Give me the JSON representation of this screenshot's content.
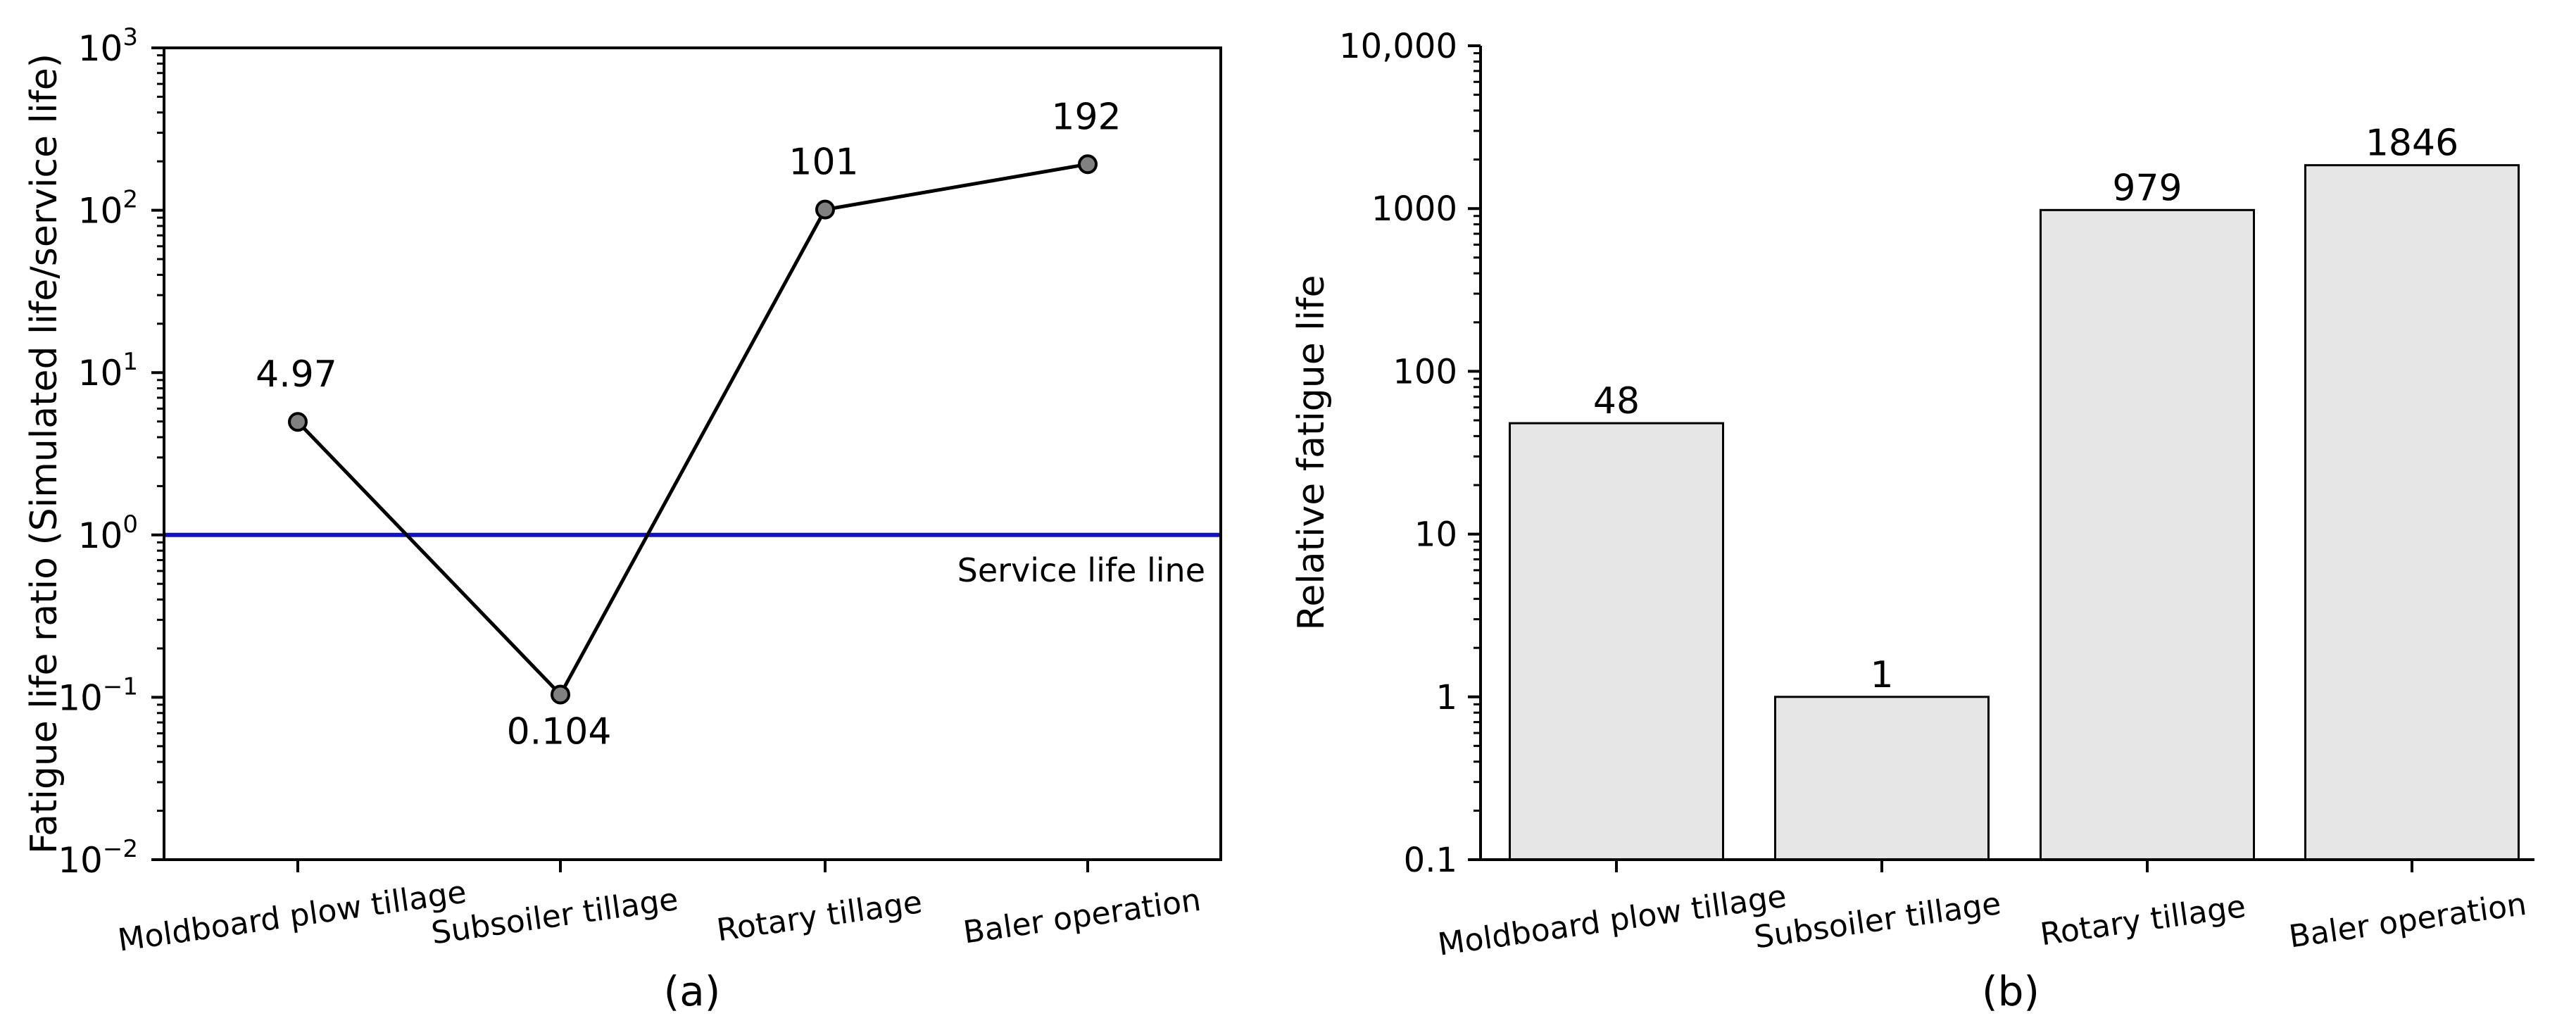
{
  "chart_data": [
    {
      "panel_label": "(a)",
      "type": "line",
      "scale": "log",
      "ylabel": "Fatigue life ratio (Simulated life/service life)",
      "xlabel": "",
      "categories": [
        "Moldboard plow tillage",
        "Subsoiler tillage",
        "Rotary tillage",
        "Baler operation"
      ],
      "series": [
        {
          "values": [
            4.97,
            0.104,
            101,
            192
          ],
          "color": "#000000",
          "marker_color": "#808080"
        }
      ],
      "data_labels": [
        "4.97",
        "0.104",
        "101",
        "192"
      ],
      "ylim": [
        0.01,
        1000
      ],
      "y_ticks": [
        {
          "value": 0.01,
          "base": "10",
          "exp": "−2"
        },
        {
          "value": 0.1,
          "base": "10",
          "exp": "−1"
        },
        {
          "value": 1,
          "base": "10",
          "exp": "0"
        },
        {
          "value": 10,
          "base": "10",
          "exp": "1"
        },
        {
          "value": 100,
          "base": "10",
          "exp": "2"
        },
        {
          "value": 1000,
          "base": "10",
          "exp": "3"
        }
      ],
      "reference_line": {
        "value": 1,
        "label": "Service life line",
        "color": "#1010d0"
      },
      "grid": false
    },
    {
      "panel_label": "(b)",
      "type": "bar",
      "scale": "log",
      "ylabel": "Relative fatigue life",
      "xlabel": "",
      "categories": [
        "Moldboard plow tillage",
        "Subsoiler tillage",
        "Rotary tillage",
        "Baler operation"
      ],
      "values": [
        48,
        1,
        979,
        1846
      ],
      "data_labels": [
        "48",
        "1",
        "979",
        "1846"
      ],
      "bar_color": "#e6e6e6",
      "ylim": [
        0.1,
        10000
      ],
      "y_ticks": [
        {
          "value": 0.1,
          "label": "0.1"
        },
        {
          "value": 1,
          "label": "1"
        },
        {
          "value": 10,
          "label": "10"
        },
        {
          "value": 100,
          "label": "100"
        },
        {
          "value": 1000,
          "label": "1000"
        },
        {
          "value": 10000,
          "label": "10,000"
        }
      ],
      "grid": false
    }
  ]
}
